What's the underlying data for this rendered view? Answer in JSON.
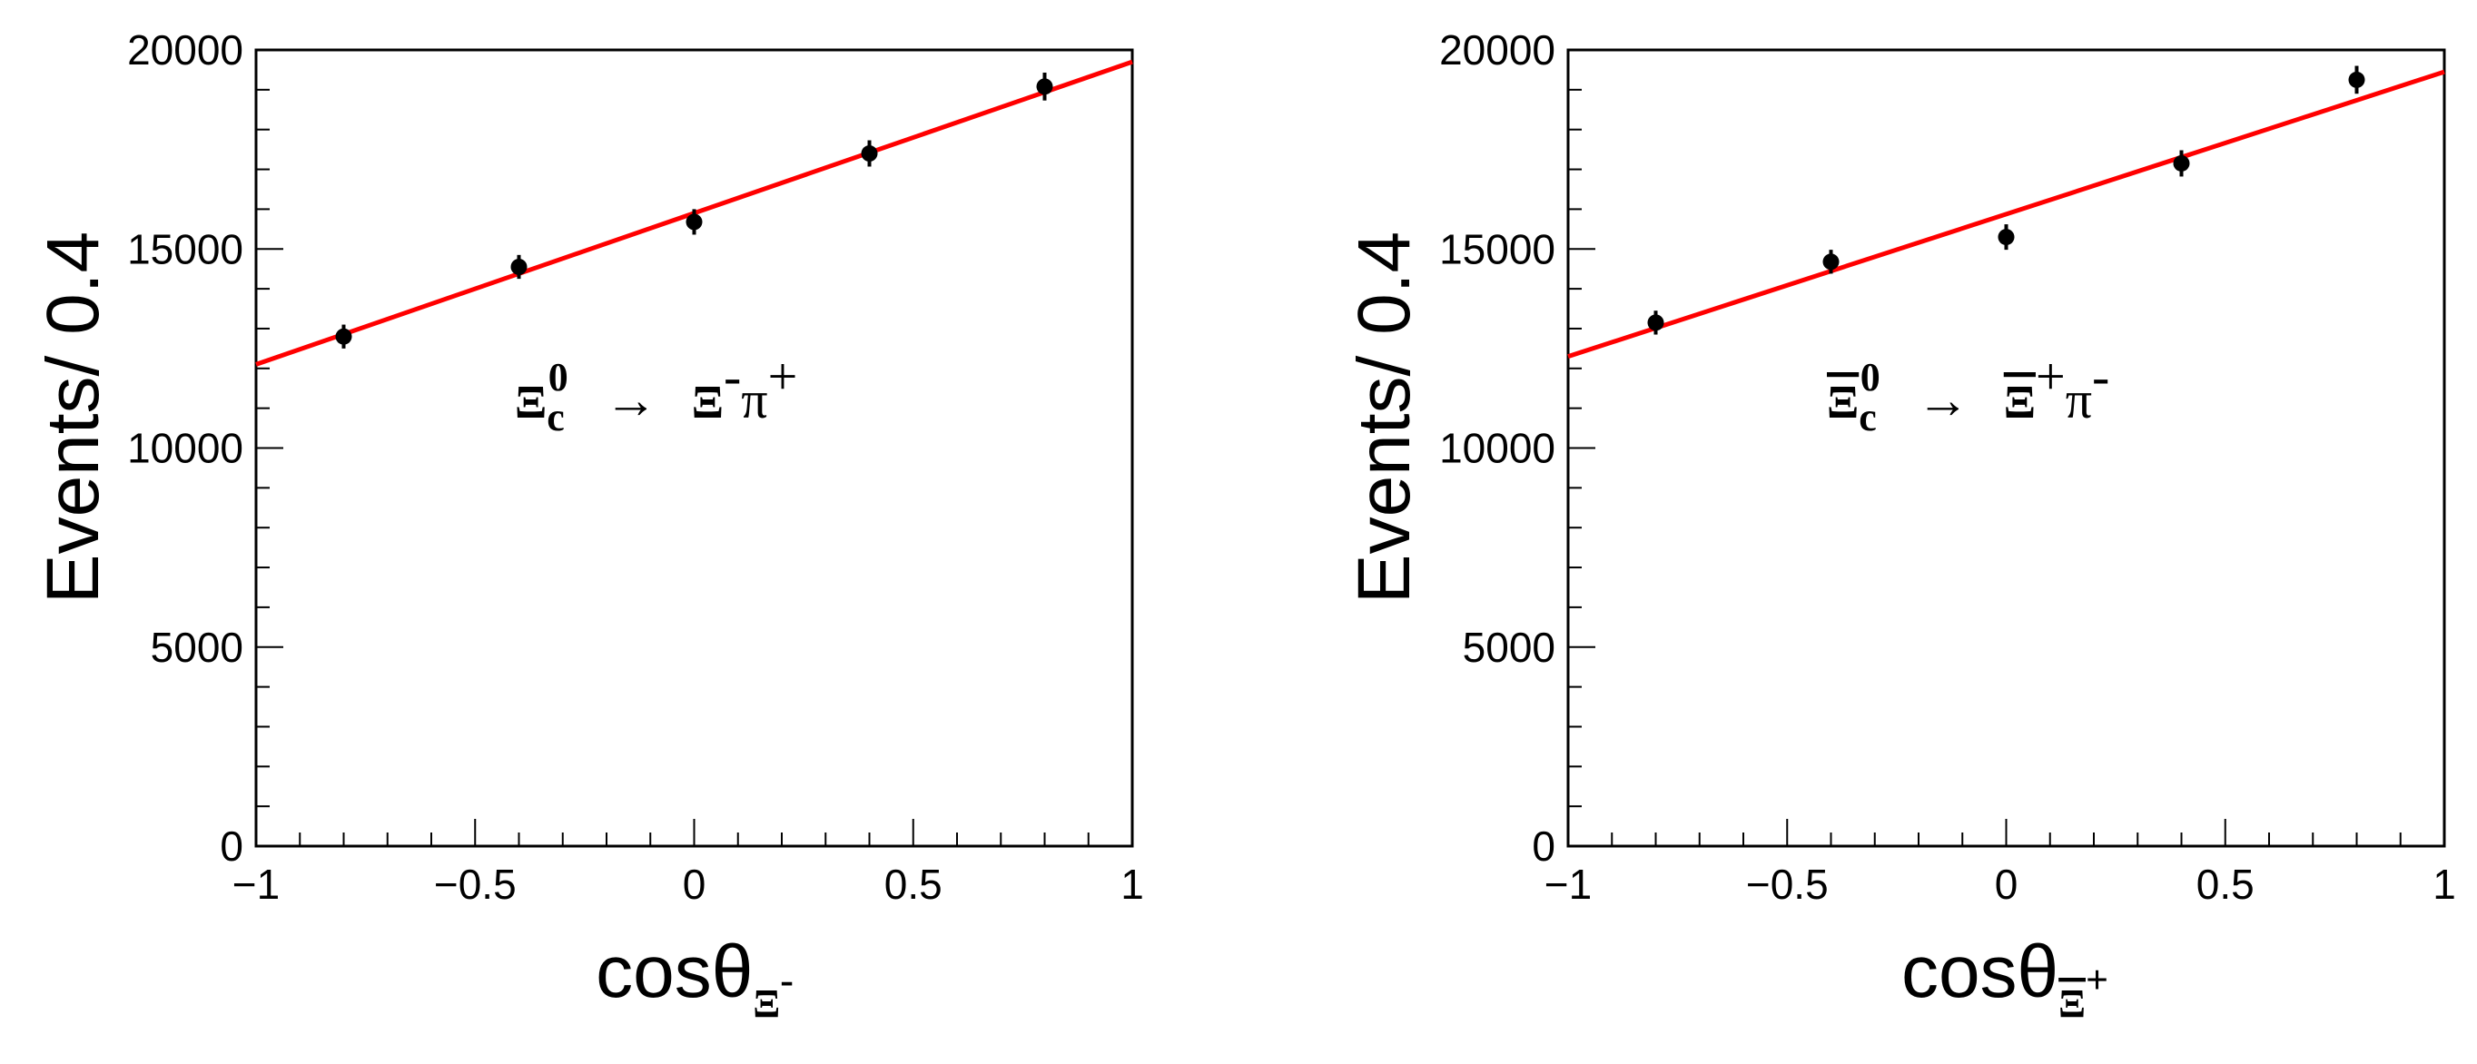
{
  "colors": {
    "fit_line": "#ff0000",
    "points": "#000000",
    "axes": "#000000"
  },
  "chart_data": [
    {
      "type": "scatter",
      "xlabel": "cosθ",
      "xlabel_subscript": "Ξ",
      "xlabel_subscript_sup": "-",
      "ylabel": "Events/ 0.4",
      "xlim": [
        -1,
        1
      ],
      "ylim": [
        0,
        20000
      ],
      "x_ticks": [
        "−1",
        "−0.5",
        "0",
        "0.5",
        "1"
      ],
      "y_ticks": [
        "0",
        "5000",
        "10000",
        "15000",
        "20000"
      ],
      "annotation": {
        "parent": "Ξ",
        "parent_sub": "c",
        "parent_sup": "0",
        "arrow": "→",
        "daughter": "Ξ",
        "daughter_sup": "-",
        "pion": "π",
        "pion_sup": "+"
      },
      "series": [
        {
          "x": [
            -0.8,
            -0.4,
            0.0,
            0.4,
            0.8
          ],
          "y": [
            12800,
            14550,
            15680,
            17400,
            19080
          ],
          "yerr": [
            300,
            300,
            320,
            330,
            350
          ]
        }
      ],
      "fit": {
        "x": [
          -1,
          1
        ],
        "y": [
          12100,
          19700
        ]
      }
    },
    {
      "type": "scatter",
      "xlabel": "cosθ",
      "xlabel_subscript": "Ξ",
      "xlabel_subscript_sup": "+",
      "ylabel": "Events/ 0.4",
      "xlim": [
        -1,
        1
      ],
      "ylim": [
        0,
        20000
      ],
      "x_ticks": [
        "−1",
        "−0.5",
        "0",
        "0.5",
        "1"
      ],
      "y_ticks": [
        "0",
        "5000",
        "10000",
        "15000",
        "20000"
      ],
      "annotation": {
        "parent": "Ξ",
        "parent_sub": "c",
        "parent_sup": "0",
        "arrow": "→",
        "daughter": "Ξ",
        "daughter_sup": "+",
        "pion": "π",
        "pion_sup": "-"
      },
      "series": [
        {
          "x": [
            -0.8,
            -0.4,
            0.0,
            0.4,
            0.8
          ],
          "y": [
            13150,
            14680,
            15300,
            17150,
            19250
          ],
          "yerr": [
            300,
            300,
            320,
            330,
            350
          ]
        }
      ],
      "fit": {
        "x": [
          -1,
          1
        ],
        "y": [
          12300,
          19450
        ]
      }
    }
  ]
}
